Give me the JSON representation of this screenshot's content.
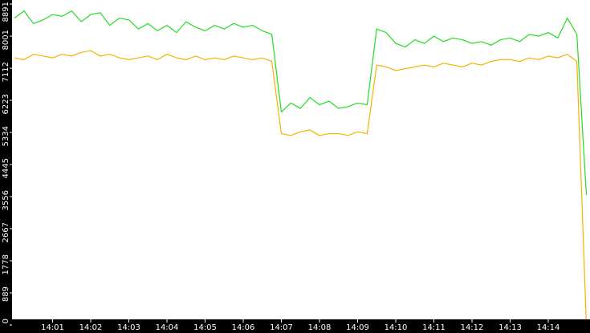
{
  "chart_data": {
    "type": "line",
    "categories": [
      null,
      null,
      null,
      null,
      "14:01",
      null,
      null,
      null,
      "14:02",
      null,
      null,
      null,
      "14:03",
      null,
      null,
      null,
      "14:04",
      null,
      null,
      null,
      "14:05",
      null,
      null,
      null,
      "14:06",
      null,
      null,
      null,
      "14:07",
      null,
      null,
      null,
      "14:08",
      null,
      null,
      null,
      "14:09",
      null,
      null,
      null,
      "14:10",
      null,
      null,
      null,
      "14:11",
      null,
      null,
      null,
      "14:12",
      null,
      null,
      null,
      "14:13",
      null,
      null,
      null,
      "14:14",
      null,
      null,
      null,
      null
    ],
    "series": [
      {
        "color": "#22dd22",
        "values": [
          8500,
          8700,
          8350,
          8450,
          8600,
          8550,
          8700,
          8400,
          8600,
          8650,
          8300,
          8500,
          8450,
          8200,
          8350,
          8150,
          8300,
          8100,
          8400,
          8250,
          8150,
          8300,
          8200,
          8350,
          8250,
          8300,
          8150,
          8050,
          5900,
          6150,
          6000,
          6300,
          6100,
          6200,
          6000,
          6050,
          6150,
          6100,
          8200,
          8100,
          7800,
          7700,
          7900,
          7800,
          8000,
          7850,
          7950,
          7900,
          7800,
          7850,
          7750,
          7900,
          7950,
          7850,
          8050,
          8000,
          8100,
          7950,
          8500,
          8050,
          3600
        ]
      },
      {
        "color": "#f0b400",
        "values": [
          7400,
          7350,
          7500,
          7450,
          7400,
          7500,
          7450,
          7550,
          7600,
          7450,
          7500,
          7400,
          7350,
          7400,
          7450,
          7350,
          7500,
          7400,
          7350,
          7450,
          7350,
          7400,
          7350,
          7450,
          7400,
          7350,
          7400,
          7300,
          5300,
          5250,
          5350,
          5400,
          5250,
          5300,
          5300,
          5250,
          5350,
          5300,
          7200,
          7150,
          7050,
          7100,
          7150,
          7200,
          7150,
          7250,
          7200,
          7150,
          7250,
          7200,
          7300,
          7350,
          7350,
          7300,
          7400,
          7350,
          7450,
          7400,
          7500,
          7300,
          0
        ]
      }
    ],
    "ylim": [
      0,
      8891
    ],
    "yticks": [
      0,
      889,
      1778,
      2667,
      3556,
      4445,
      5334,
      6223,
      7112,
      8001,
      8891
    ]
  }
}
